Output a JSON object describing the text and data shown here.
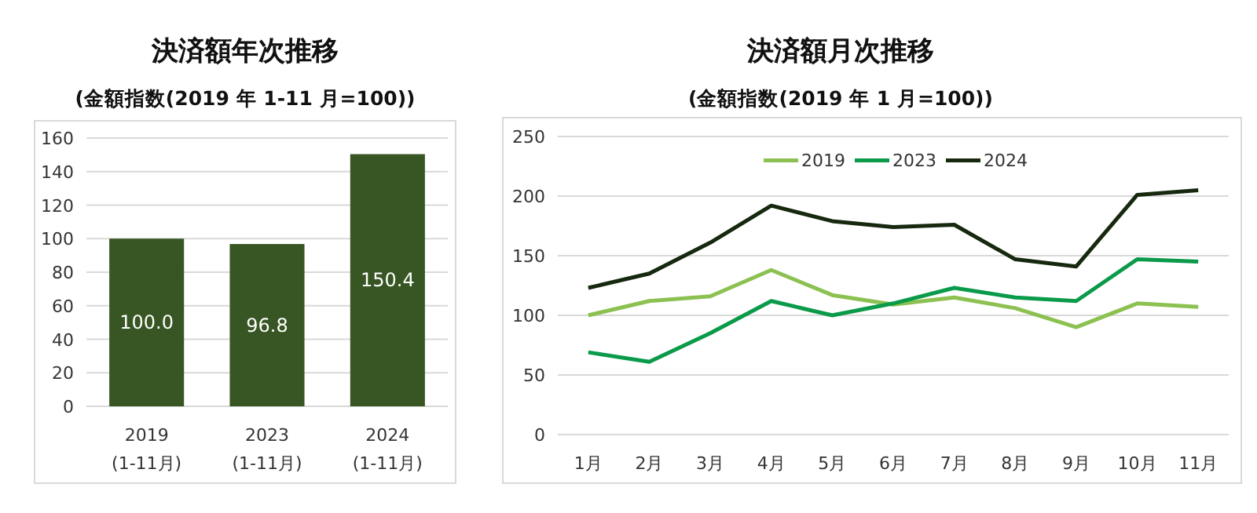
{
  "chart_data": [
    {
      "type": "bar",
      "title": "決済額年次推移",
      "subtitle": "(金額指数(2019 年 1-11 月=100))",
      "categories": [
        "2019\n(1-11月)",
        "2023\n(1-11月)",
        "2024\n(1-11月)"
      ],
      "values": [
        100.0,
        96.8,
        150.4
      ],
      "color": "#375623",
      "data_labels": true,
      "value_labels": [
        "100.0",
        "96.8",
        "150.4"
      ],
      "ylim": [
        0,
        160
      ],
      "yticks": [
        0,
        20,
        40,
        60,
        80,
        100,
        120,
        140,
        160
      ],
      "grid": "y"
    },
    {
      "type": "line",
      "title": "決済額月次推移",
      "subtitle": "(金額指数(2019 年 1 月=100))",
      "categories": [
        "1月",
        "2月",
        "3月",
        "4月",
        "5月",
        "6月",
        "7月",
        "8月",
        "9月",
        "10月",
        "11月"
      ],
      "series": [
        {
          "name": "2019",
          "color": "#8cc152",
          "values": [
            100,
            112,
            116,
            138,
            117,
            109,
            115,
            106,
            90,
            110,
            107
          ]
        },
        {
          "name": "2023",
          "color": "#0a9a4a",
          "values": [
            69,
            61,
            85,
            112,
            100,
            110,
            123,
            115,
            112,
            147,
            145
          ]
        },
        {
          "name": "2024",
          "color": "#16280e",
          "values": [
            123,
            135,
            161,
            192,
            179,
            174,
            176,
            147,
            141,
            201,
            205
          ]
        }
      ],
      "ylim": [
        0,
        250
      ],
      "yticks": [
        0,
        50,
        100,
        150,
        200,
        250
      ],
      "grid": "y",
      "legend": "top",
      "marker": "none",
      "line_style": "solid"
    }
  ]
}
